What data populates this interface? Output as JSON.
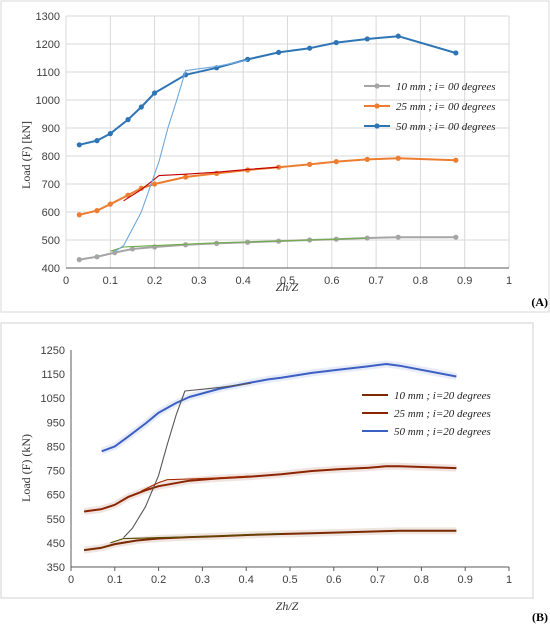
{
  "chart_data": [
    {
      "type": "line",
      "panel_label": "(A)",
      "xlabel": "Zh/Z",
      "ylabel": "Load (F) [kN]",
      "xlim": [
        0,
        1
      ],
      "ylim": [
        400,
        1300
      ],
      "xticks": [
        0,
        0.1,
        0.2,
        0.3,
        0.4,
        0.5,
        0.6,
        0.7,
        0.8,
        0.9,
        1
      ],
      "yticks": [
        400,
        500,
        600,
        700,
        800,
        900,
        1000,
        1100,
        1200,
        1300
      ],
      "grid": true,
      "legend_placement": "right",
      "series": [
        {
          "name": "10 mm ; i= 00 degrees",
          "color": "#a5a5a5",
          "markers": true,
          "x": [
            0.03,
            0.07,
            0.11,
            0.15,
            0.2,
            0.27,
            0.34,
            0.41,
            0.48,
            0.55,
            0.61,
            0.68,
            0.75,
            0.88
          ],
          "y": [
            430,
            440,
            455,
            468,
            475,
            483,
            488,
            492,
            496,
            500,
            503,
            507,
            510,
            510
          ]
        },
        {
          "name": "25 mm ; i= 00 degrees",
          "color": "#ed7d31",
          "markers": true,
          "x": [
            0.03,
            0.07,
            0.1,
            0.14,
            0.17,
            0.2,
            0.27,
            0.34,
            0.41,
            0.48,
            0.55,
            0.61,
            0.68,
            0.75,
            0.88
          ],
          "y": [
            590,
            605,
            628,
            660,
            685,
            700,
            725,
            738,
            750,
            760,
            770,
            780,
            788,
            792,
            785
          ]
        },
        {
          "name": "50 mm ; i= 00 degrees",
          "color": "#2e75b6",
          "markers": true,
          "x": [
            0.03,
            0.07,
            0.1,
            0.14,
            0.17,
            0.2,
            0.27,
            0.34,
            0.41,
            0.48,
            0.55,
            0.61,
            0.68,
            0.75,
            0.88
          ],
          "y": [
            840,
            855,
            880,
            930,
            975,
            1025,
            1090,
            1115,
            1145,
            1170,
            1185,
            1205,
            1218,
            1228,
            1168
          ]
        },
        {
          "name": "",
          "color": "#70ad47",
          "markers": false,
          "x": [
            0.1,
            0.13,
            0.17,
            0.2,
            0.27,
            0.34,
            0.41,
            0.48,
            0.55,
            0.61,
            0.68
          ],
          "y": [
            460,
            475,
            478,
            480,
            485,
            490,
            493,
            496,
            500,
            503,
            507
          ]
        },
        {
          "name": "",
          "color": "#c00000",
          "markers": false,
          "x": [
            0.13,
            0.17,
            0.21,
            0.27,
            0.34,
            0.41,
            0.48
          ],
          "y": [
            640,
            680,
            730,
            735,
            742,
            752,
            760
          ]
        },
        {
          "name": "",
          "color": "#6fa8dc",
          "markers": false,
          "x": [
            0.11,
            0.13,
            0.17,
            0.21,
            0.23,
            0.25,
            0.27,
            0.34,
            0.41
          ],
          "y": [
            458,
            480,
            600,
            780,
            900,
            1000,
            1105,
            1120,
            1142
          ]
        }
      ]
    },
    {
      "type": "line",
      "panel_label": "(B)",
      "xlabel": "Zh/Z",
      "ylabel": "Load (F) (kN)",
      "xlim": [
        0,
        1
      ],
      "ylim": [
        350,
        1250
      ],
      "xticks": [
        0,
        0.1,
        0.2,
        0.3,
        0.4,
        0.5,
        0.6,
        0.7,
        0.8,
        0.9,
        1
      ],
      "yticks": [
        350,
        450,
        550,
        650,
        750,
        850,
        950,
        1050,
        1150,
        1250
      ],
      "grid": false,
      "legend_placement": "right",
      "series": [
        {
          "name": "10 mm ;  i=20 degrees",
          "color": "#7b2a00",
          "markers": false,
          "x": [
            0.03,
            0.07,
            0.1,
            0.15,
            0.2,
            0.27,
            0.34,
            0.41,
            0.48,
            0.55,
            0.61,
            0.68,
            0.75,
            0.88
          ],
          "y": [
            420,
            430,
            445,
            460,
            468,
            474,
            478,
            483,
            487,
            490,
            493,
            497,
            500,
            500
          ]
        },
        {
          "name": "25 mm ;  i=20 degrees",
          "color": "#8b2500",
          "markers": false,
          "x": [
            0.03,
            0.07,
            0.1,
            0.13,
            0.17,
            0.2,
            0.27,
            0.34,
            0.41,
            0.48,
            0.55,
            0.61,
            0.68,
            0.72,
            0.75,
            0.88
          ],
          "y": [
            580,
            590,
            608,
            640,
            668,
            685,
            708,
            718,
            725,
            735,
            748,
            755,
            762,
            768,
            768,
            760
          ]
        },
        {
          "name": "50 mm ;  i=20 degrees",
          "color": "#3c5fc4",
          "markers": false,
          "x": [
            0.07,
            0.1,
            0.13,
            0.17,
            0.2,
            0.24,
            0.27,
            0.34,
            0.41,
            0.45,
            0.48,
            0.55,
            0.61,
            0.68,
            0.72,
            0.75,
            0.88
          ],
          "y": [
            830,
            850,
            890,
            945,
            990,
            1030,
            1055,
            1090,
            1115,
            1128,
            1135,
            1155,
            1168,
            1183,
            1192,
            1185,
            1140
          ]
        },
        {
          "name": "",
          "color": "#555555",
          "markers": false,
          "x": [
            0.12,
            0.14,
            0.17,
            0.2,
            0.22,
            0.24,
            0.26,
            0.34,
            0.41
          ],
          "y": [
            472,
            510,
            600,
            730,
            860,
            980,
            1080,
            1095,
            1112
          ]
        },
        {
          "name": "",
          "color": "#5a4a00",
          "markers": false,
          "x": [
            0.09,
            0.12,
            0.17,
            0.2,
            0.27,
            0.34,
            0.41,
            0.48
          ],
          "y": [
            450,
            468,
            470,
            472,
            475,
            479,
            484,
            488
          ]
        },
        {
          "name": "",
          "color": "#a52a00",
          "markers": false,
          "x": [
            0.16,
            0.2,
            0.22,
            0.27,
            0.34,
            0.41
          ],
          "y": [
            665,
            700,
            712,
            715,
            720,
            727
          ]
        }
      ]
    }
  ]
}
